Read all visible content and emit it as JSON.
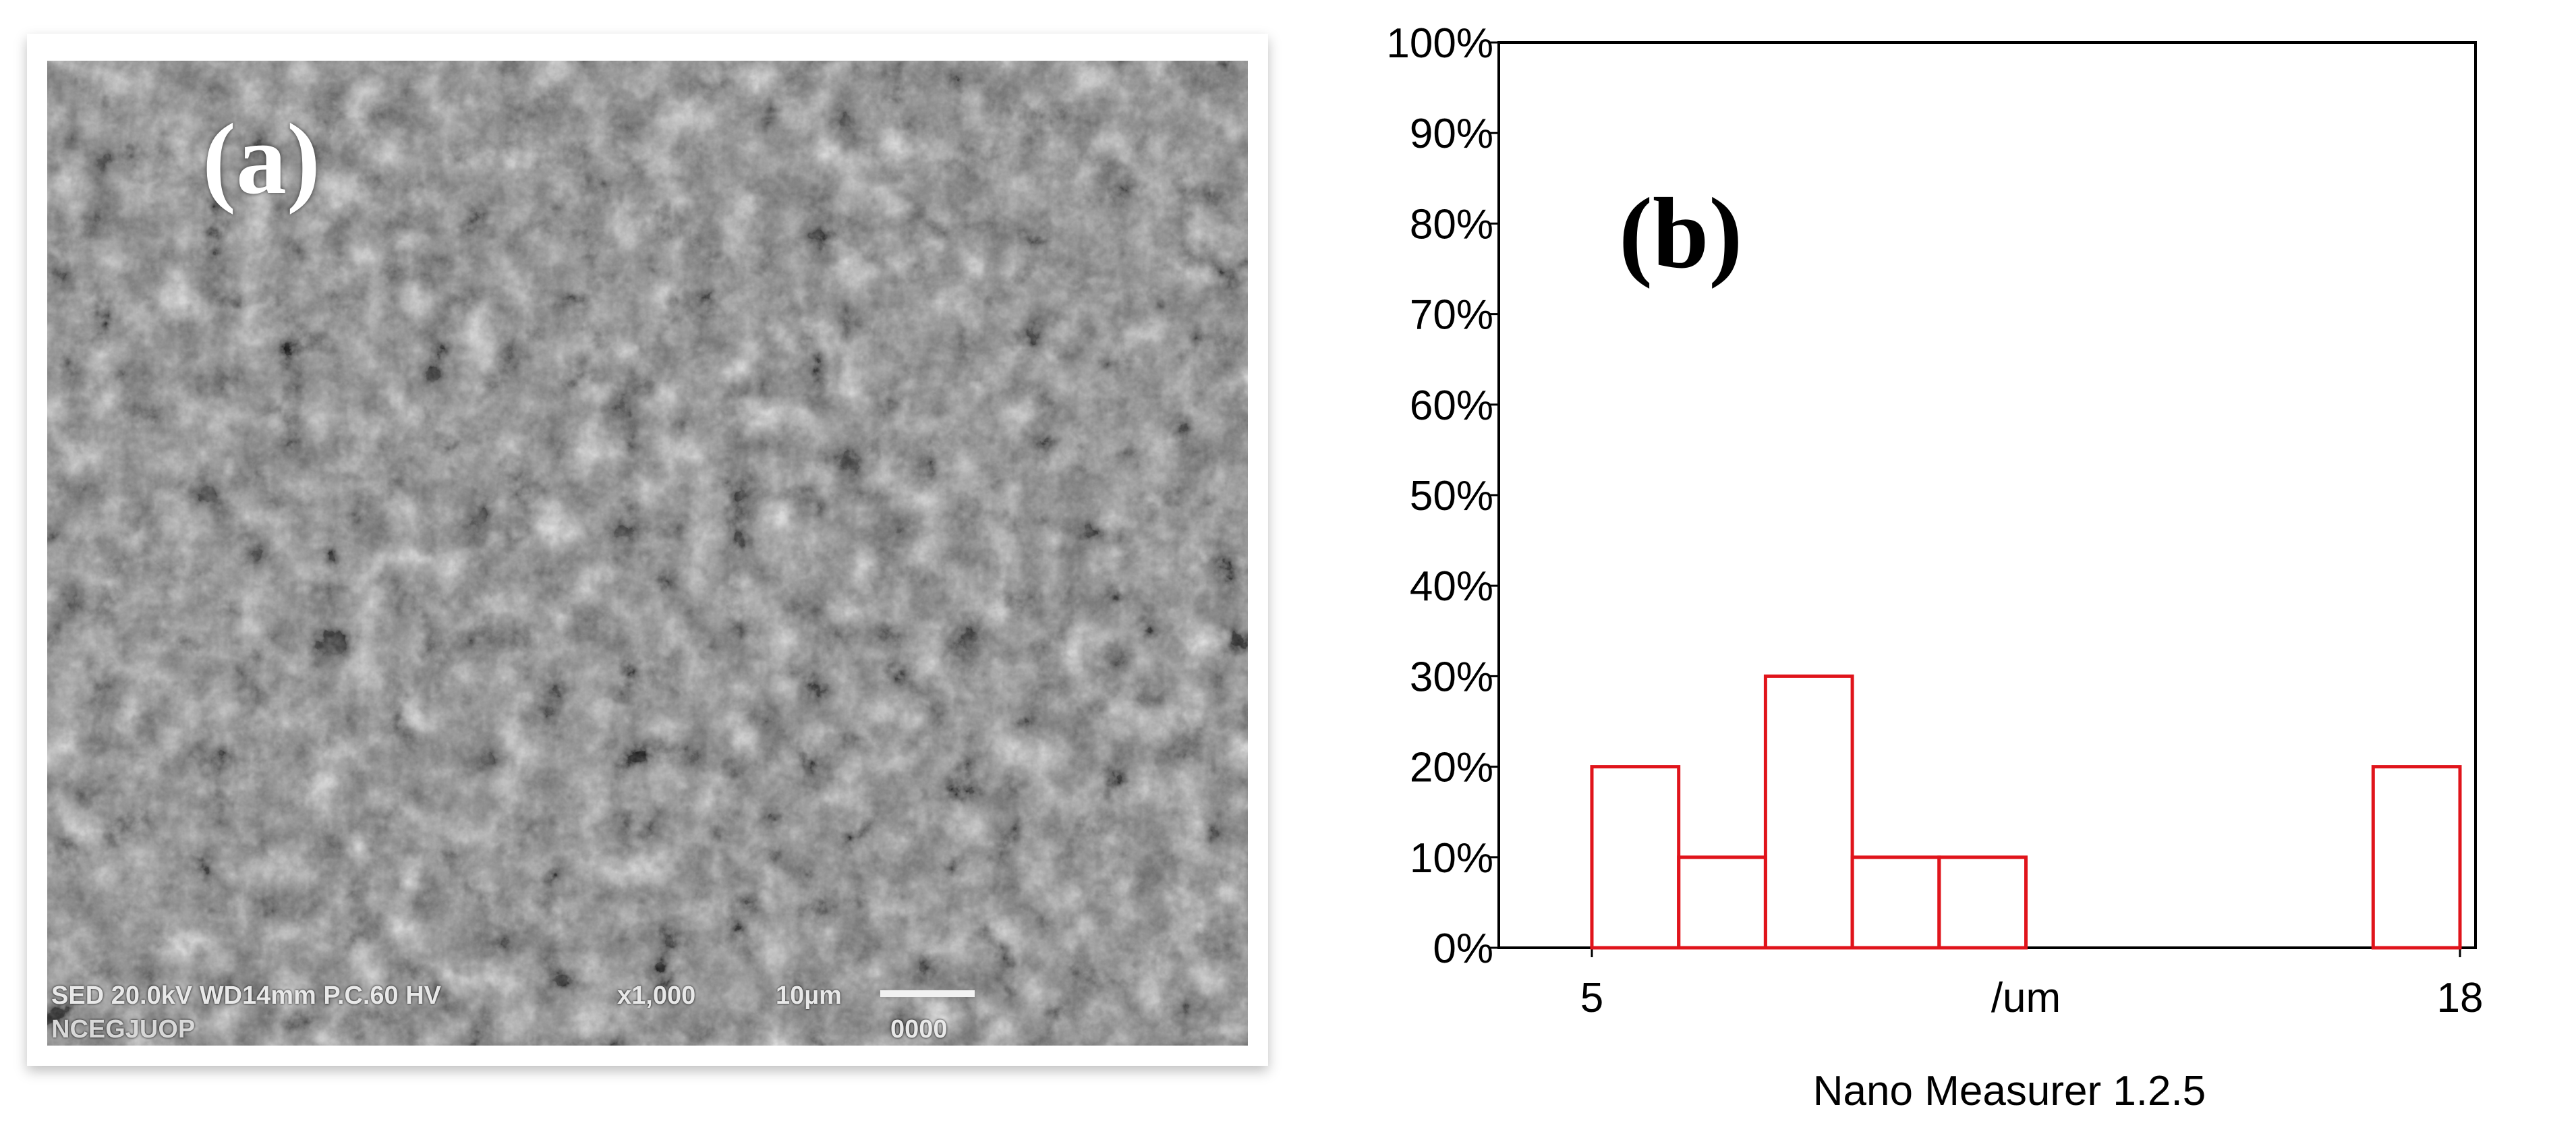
{
  "panel_a": {
    "label": "(a)",
    "sem_info_line1": "SED  20.0kV WD14mm P.C.60  HV",
    "sem_info_line2": "NCEGJUOP",
    "magnification": "x1,000",
    "scale_label": "10µm",
    "image_id": "0000"
  },
  "panel_b": {
    "label": "(b)"
  },
  "chart_data": {
    "type": "bar",
    "title": "",
    "xlabel": "/um",
    "caption": "Nano Measurer 1.2.5",
    "x_tick_labels": [
      "5",
      "/um",
      "18"
    ],
    "xlim": [
      5,
      18
    ],
    "y_tick_labels": [
      "0%",
      "10%",
      "20%",
      "30%",
      "40%",
      "50%",
      "60%",
      "70%",
      "80%",
      "90%",
      "100%"
    ],
    "ylim": [
      0,
      100
    ],
    "bin_edges": [
      5,
      6.3,
      7.6,
      8.9,
      10.2,
      11.5,
      16.7,
      18
    ],
    "values": [
      20,
      10,
      30,
      10,
      10,
      0,
      20
    ],
    "bar_color": "#e0141b",
    "grid": false
  }
}
